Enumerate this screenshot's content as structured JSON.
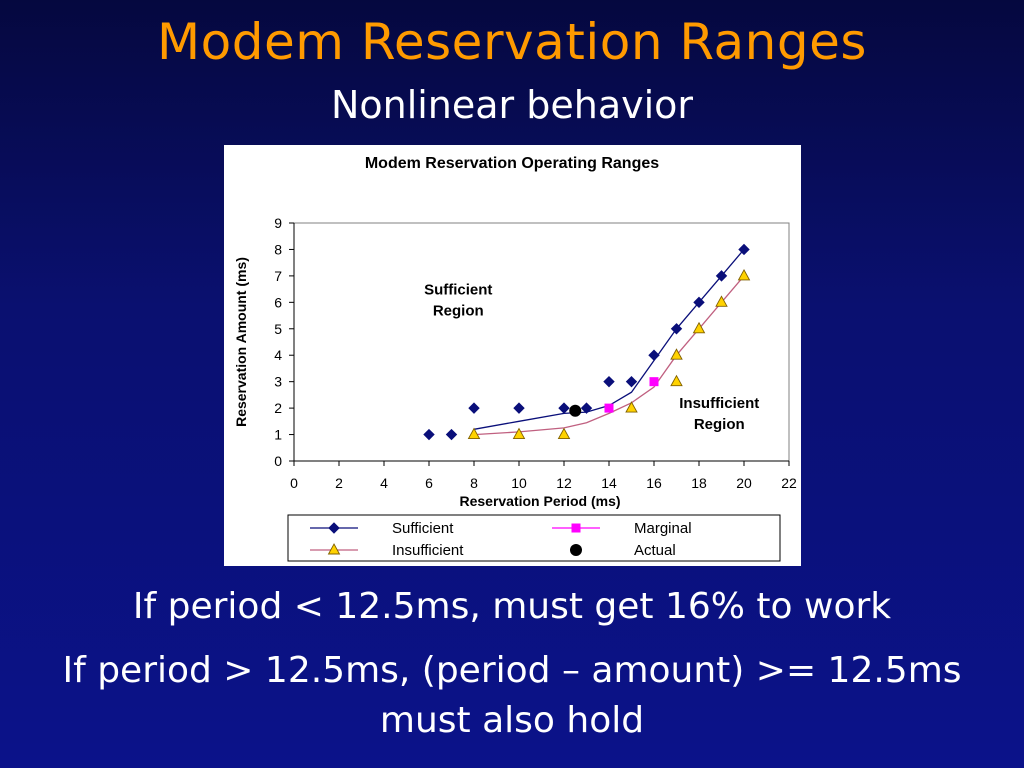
{
  "slide": {
    "title": "Modem Reservation Ranges",
    "subtitle": "Nonlinear behavior",
    "bullets": [
      "If period < 12.5ms, must get 16% to work",
      "If period > 12.5ms, (period – amount) >= 12.5ms",
      "must also hold"
    ],
    "colors": {
      "title": "#ff9a00",
      "text": "#ffffff",
      "background": "#0a1070"
    }
  },
  "chart_data": {
    "type": "line",
    "title": "Modem Reservation Operating Ranges",
    "xlabel": "Reservation Period (ms)",
    "ylabel": "Reservation Amount (ms)",
    "xlim": [
      0,
      22
    ],
    "ylim": [
      0,
      9
    ],
    "xticks": [
      0,
      2,
      4,
      6,
      8,
      10,
      12,
      14,
      16,
      18,
      20,
      22
    ],
    "yticks": [
      0,
      1,
      2,
      3,
      4,
      5,
      6,
      7,
      8,
      9
    ],
    "grid": false,
    "legend_position": "bottom",
    "series": [
      {
        "name": "Sufficient",
        "marker": "diamond",
        "color": "#0a0f7a",
        "points": [
          [
            6,
            1
          ],
          [
            7,
            1
          ],
          [
            8,
            2
          ],
          [
            10,
            2
          ],
          [
            12,
            2
          ],
          [
            13,
            2
          ],
          [
            14,
            3
          ],
          [
            15,
            3
          ],
          [
            16,
            4
          ],
          [
            17,
            5
          ],
          [
            18,
            6
          ],
          [
            19,
            7
          ],
          [
            20,
            8
          ]
        ],
        "trend": [
          [
            8,
            1.2
          ],
          [
            10,
            1.5
          ],
          [
            12,
            1.8
          ],
          [
            13,
            1.85
          ],
          [
            14,
            2.1
          ],
          [
            15,
            2.6
          ],
          [
            16,
            3.8
          ],
          [
            17,
            5
          ],
          [
            18,
            6
          ],
          [
            19,
            7
          ],
          [
            20,
            8
          ]
        ]
      },
      {
        "name": "Marginal",
        "marker": "square",
        "color": "#ff00ff",
        "points": [
          [
            14,
            2
          ],
          [
            16,
            3
          ]
        ]
      },
      {
        "name": "Insufficient",
        "marker": "triangle",
        "color": "#c06080",
        "fill": "#ffd200",
        "points": [
          [
            8,
            1
          ],
          [
            10,
            1
          ],
          [
            12,
            1
          ],
          [
            15,
            2
          ],
          [
            17,
            3
          ],
          [
            17,
            4
          ],
          [
            18,
            5
          ],
          [
            19,
            6
          ],
          [
            20,
            7
          ]
        ],
        "trend": [
          [
            8,
            1
          ],
          [
            10,
            1.1
          ],
          [
            12,
            1.25
          ],
          [
            13,
            1.45
          ],
          [
            14,
            1.8
          ],
          [
            15,
            2.2
          ],
          [
            16,
            2.8
          ],
          [
            17,
            4
          ],
          [
            18,
            5
          ],
          [
            19,
            6
          ],
          [
            20,
            7
          ]
        ]
      },
      {
        "name": "Actual",
        "marker": "circle",
        "color": "#000000",
        "points": [
          [
            12.5,
            1.9
          ]
        ]
      }
    ],
    "annotations": [
      {
        "lines": [
          "Sufficient",
          "Region"
        ],
        "x": 7.3,
        "y": 6.3
      },
      {
        "lines": [
          "Insufficient",
          "Region"
        ],
        "x": 18.9,
        "y": 2.0
      }
    ]
  }
}
